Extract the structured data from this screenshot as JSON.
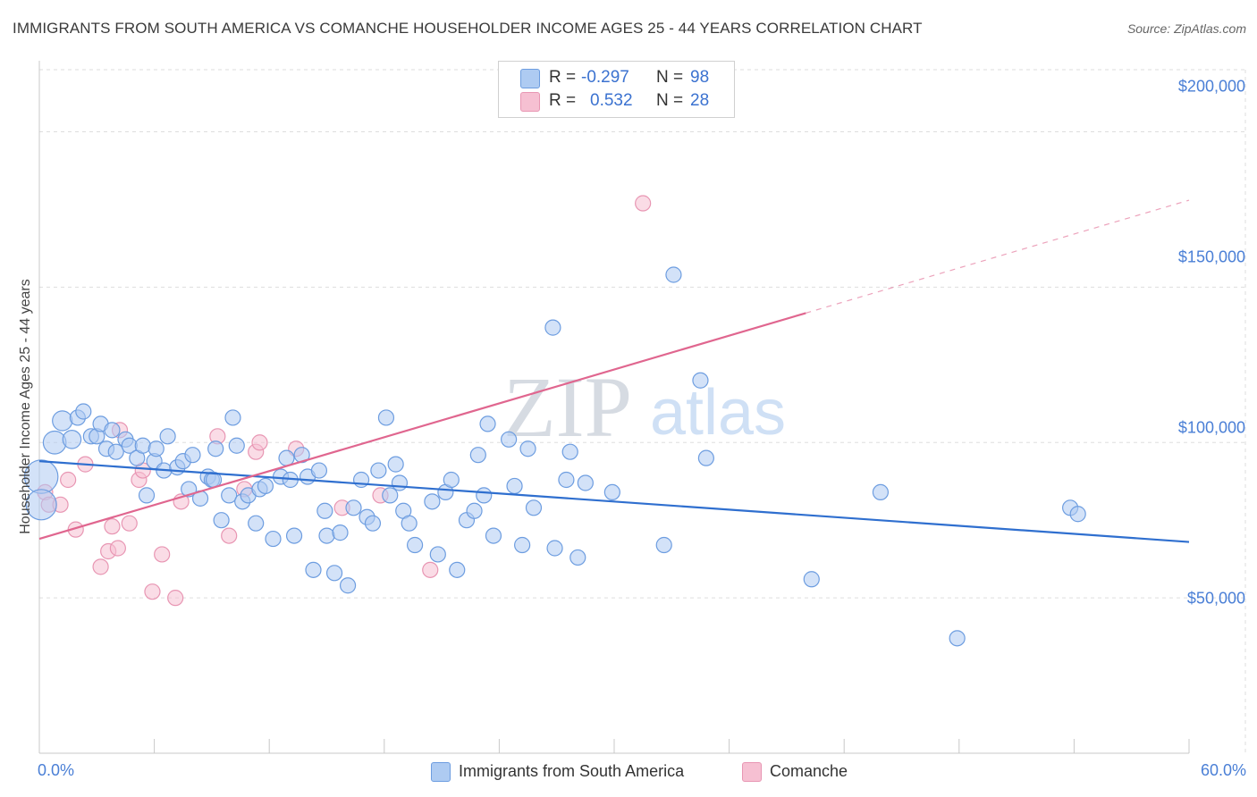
{
  "title": "IMMIGRANTS FROM SOUTH AMERICA VS COMANCHE HOUSEHOLDER INCOME AGES 25 - 44 YEARS CORRELATION CHART",
  "source": "Source: ZipAtlas.com",
  "watermark": {
    "zip": "ZIP",
    "atlas": "atlas"
  },
  "legend": {
    "r_label": "R =",
    "n_label": "N =",
    "blue": {
      "r": "-0.297",
      "n": "98"
    },
    "pink": {
      "r": "0.532",
      "n": "28"
    }
  },
  "colors": {
    "blue_fill": "#aecbf2",
    "blue_stroke": "#6d9de0",
    "blue_line": "#2f6fcf",
    "pink_fill": "#f6c0d2",
    "pink_stroke": "#e896b3",
    "pink_line": "#e0668f",
    "grid": "#dddddd",
    "tick_text": "#4a7fd6"
  },
  "chart_data": {
    "type": "scatter",
    "title": "IMMIGRANTS FROM SOUTH AMERICA VS COMANCHE HOUSEHOLDER INCOME AGES 25 - 44 YEARS CORRELATION CHART",
    "xlabel": "",
    "ylabel": "Householder Income Ages 25 - 44 years",
    "xlim": [
      0,
      60
    ],
    "ylim": [
      0,
      220000
    ],
    "x_tick_labels": [
      "0.0%",
      "60.0%"
    ],
    "y_ticks": [
      50000,
      100000,
      150000,
      200000
    ],
    "y_tick_labels": [
      "$50,000",
      "$100,000",
      "$150,000",
      "$200,000"
    ],
    "series": [
      {
        "name": "Immigrants from South America",
        "r": -0.297,
        "n": 98,
        "trend": {
          "x": [
            0,
            60
          ],
          "y": [
            94000,
            68000
          ],
          "solid_to": 60
        },
        "points": [
          {
            "x": 0.1,
            "y": 89000,
            "s": 2.2
          },
          {
            "x": 0.1,
            "y": 80000,
            "s": 2.0
          },
          {
            "x": 0.8,
            "y": 100000,
            "s": 1.5
          },
          {
            "x": 1.2,
            "y": 107000,
            "s": 1.3
          },
          {
            "x": 1.7,
            "y": 101000,
            "s": 1.2
          },
          {
            "x": 2.0,
            "y": 108000,
            "s": 1.0
          },
          {
            "x": 2.3,
            "y": 110000,
            "s": 1.0
          },
          {
            "x": 2.7,
            "y": 102000,
            "s": 1.0
          },
          {
            "x": 3.0,
            "y": 102000,
            "s": 1.0
          },
          {
            "x": 3.2,
            "y": 106000,
            "s": 1.0
          },
          {
            "x": 3.5,
            "y": 98000,
            "s": 1.0
          },
          {
            "x": 3.8,
            "y": 104000,
            "s": 1.0
          },
          {
            "x": 4.0,
            "y": 97000,
            "s": 1.0
          },
          {
            "x": 4.5,
            "y": 101000,
            "s": 1.0
          },
          {
            "x": 4.7,
            "y": 99000,
            "s": 1.0
          },
          {
            "x": 5.1,
            "y": 95000,
            "s": 1.0
          },
          {
            "x": 5.4,
            "y": 99000,
            "s": 1.0
          },
          {
            "x": 5.6,
            "y": 83000,
            "s": 1.0
          },
          {
            "x": 6.0,
            "y": 94000,
            "s": 1.0
          },
          {
            "x": 6.1,
            "y": 98000,
            "s": 1.0
          },
          {
            "x": 6.5,
            "y": 91000,
            "s": 1.0
          },
          {
            "x": 6.7,
            "y": 102000,
            "s": 1.0
          },
          {
            "x": 7.2,
            "y": 92000,
            "s": 1.0
          },
          {
            "x": 7.5,
            "y": 94000,
            "s": 1.0
          },
          {
            "x": 7.8,
            "y": 85000,
            "s": 1.0
          },
          {
            "x": 8.0,
            "y": 96000,
            "s": 1.0
          },
          {
            "x": 8.4,
            "y": 82000,
            "s": 1.0
          },
          {
            "x": 8.8,
            "y": 89000,
            "s": 1.0
          },
          {
            "x": 9.0,
            "y": 88000,
            "s": 1.0
          },
          {
            "x": 9.1,
            "y": 88000,
            "s": 1.0
          },
          {
            "x": 9.2,
            "y": 98000,
            "s": 1.0
          },
          {
            "x": 9.5,
            "y": 75000,
            "s": 1.0
          },
          {
            "x": 9.9,
            "y": 83000,
            "s": 1.0
          },
          {
            "x": 10.1,
            "y": 108000,
            "s": 1.0
          },
          {
            "x": 10.3,
            "y": 99000,
            "s": 1.0
          },
          {
            "x": 10.6,
            "y": 81000,
            "s": 1.0
          },
          {
            "x": 10.9,
            "y": 83000,
            "s": 1.0
          },
          {
            "x": 11.3,
            "y": 74000,
            "s": 1.0
          },
          {
            "x": 11.5,
            "y": 85000,
            "s": 1.0
          },
          {
            "x": 11.8,
            "y": 86000,
            "s": 1.0
          },
          {
            "x": 12.2,
            "y": 69000,
            "s": 1.0
          },
          {
            "x": 12.6,
            "y": 89000,
            "s": 1.0
          },
          {
            "x": 12.9,
            "y": 95000,
            "s": 1.0
          },
          {
            "x": 13.1,
            "y": 88000,
            "s": 1.0
          },
          {
            "x": 13.3,
            "y": 70000,
            "s": 1.0
          },
          {
            "x": 13.7,
            "y": 96000,
            "s": 1.0
          },
          {
            "x": 14.0,
            "y": 89000,
            "s": 1.0
          },
          {
            "x": 14.3,
            "y": 59000,
            "s": 1.0
          },
          {
            "x": 14.6,
            "y": 91000,
            "s": 1.0
          },
          {
            "x": 14.9,
            "y": 78000,
            "s": 1.0
          },
          {
            "x": 15.0,
            "y": 70000,
            "s": 1.0
          },
          {
            "x": 15.4,
            "y": 58000,
            "s": 1.0
          },
          {
            "x": 15.7,
            "y": 71000,
            "s": 1.0
          },
          {
            "x": 16.1,
            "y": 54000,
            "s": 1.0
          },
          {
            "x": 16.4,
            "y": 79000,
            "s": 1.0
          },
          {
            "x": 16.8,
            "y": 88000,
            "s": 1.0
          },
          {
            "x": 17.1,
            "y": 76000,
            "s": 1.0
          },
          {
            "x": 17.4,
            "y": 74000,
            "s": 1.0
          },
          {
            "x": 17.7,
            "y": 91000,
            "s": 1.0
          },
          {
            "x": 18.1,
            "y": 108000,
            "s": 1.0
          },
          {
            "x": 18.3,
            "y": 83000,
            "s": 1.0
          },
          {
            "x": 18.6,
            "y": 93000,
            "s": 1.0
          },
          {
            "x": 18.8,
            "y": 87000,
            "s": 1.0
          },
          {
            "x": 19.0,
            "y": 78000,
            "s": 1.0
          },
          {
            "x": 19.3,
            "y": 74000,
            "s": 1.0
          },
          {
            "x": 19.6,
            "y": 67000,
            "s": 1.0
          },
          {
            "x": 20.5,
            "y": 81000,
            "s": 1.0
          },
          {
            "x": 20.8,
            "y": 64000,
            "s": 1.0
          },
          {
            "x": 21.2,
            "y": 84000,
            "s": 1.0
          },
          {
            "x": 21.5,
            "y": 88000,
            "s": 1.0
          },
          {
            "x": 21.8,
            "y": 59000,
            "s": 1.0
          },
          {
            "x": 22.3,
            "y": 75000,
            "s": 1.0
          },
          {
            "x": 22.7,
            "y": 78000,
            "s": 1.0
          },
          {
            "x": 22.9,
            "y": 96000,
            "s": 1.0
          },
          {
            "x": 23.2,
            "y": 83000,
            "s": 1.0
          },
          {
            "x": 23.4,
            "y": 106000,
            "s": 1.0
          },
          {
            "x": 23.7,
            "y": 70000,
            "s": 1.0
          },
          {
            "x": 24.5,
            "y": 101000,
            "s": 1.0
          },
          {
            "x": 24.8,
            "y": 86000,
            "s": 1.0
          },
          {
            "x": 25.2,
            "y": 67000,
            "s": 1.0
          },
          {
            "x": 25.5,
            "y": 98000,
            "s": 1.0
          },
          {
            "x": 25.8,
            "y": 79000,
            "s": 1.0
          },
          {
            "x": 26.8,
            "y": 137000,
            "s": 1.0
          },
          {
            "x": 26.9,
            "y": 66000,
            "s": 1.0
          },
          {
            "x": 27.5,
            "y": 88000,
            "s": 1.0
          },
          {
            "x": 27.7,
            "y": 97000,
            "s": 1.0
          },
          {
            "x": 28.1,
            "y": 63000,
            "s": 1.0
          },
          {
            "x": 28.5,
            "y": 87000,
            "s": 1.0
          },
          {
            "x": 29.9,
            "y": 84000,
            "s": 1.0
          },
          {
            "x": 32.6,
            "y": 67000,
            "s": 1.0
          },
          {
            "x": 33.1,
            "y": 154000,
            "s": 1.0
          },
          {
            "x": 34.5,
            "y": 120000,
            "s": 1.0
          },
          {
            "x": 34.8,
            "y": 95000,
            "s": 1.0
          },
          {
            "x": 40.3,
            "y": 56000,
            "s": 1.0
          },
          {
            "x": 43.9,
            "y": 84000,
            "s": 1.0
          },
          {
            "x": 47.9,
            "y": 37000,
            "s": 1.0
          },
          {
            "x": 53.8,
            "y": 79000,
            "s": 1.0
          },
          {
            "x": 54.2,
            "y": 77000,
            "s": 1.0
          }
        ]
      },
      {
        "name": "Comanche",
        "r": 0.532,
        "n": 28,
        "trend": {
          "x": [
            0,
            60
          ],
          "y": [
            69000,
            178000
          ],
          "solid_to": 40
        },
        "points": [
          {
            "x": 0.3,
            "y": 84000,
            "s": 1.0
          },
          {
            "x": 0.5,
            "y": 80000,
            "s": 1.0
          },
          {
            "x": 1.1,
            "y": 80000,
            "s": 1.0
          },
          {
            "x": 1.5,
            "y": 88000,
            "s": 1.0
          },
          {
            "x": 1.9,
            "y": 72000,
            "s": 1.0
          },
          {
            "x": 2.4,
            "y": 93000,
            "s": 1.0
          },
          {
            "x": 3.2,
            "y": 60000,
            "s": 1.0
          },
          {
            "x": 3.6,
            "y": 65000,
            "s": 1.0
          },
          {
            "x": 3.8,
            "y": 73000,
            "s": 1.0
          },
          {
            "x": 4.1,
            "y": 66000,
            "s": 1.0
          },
          {
            "x": 4.2,
            "y": 104000,
            "s": 1.0
          },
          {
            "x": 4.7,
            "y": 74000,
            "s": 1.0
          },
          {
            "x": 5.2,
            "y": 88000,
            "s": 1.0
          },
          {
            "x": 5.4,
            "y": 91000,
            "s": 1.0
          },
          {
            "x": 5.9,
            "y": 52000,
            "s": 1.0
          },
          {
            "x": 6.4,
            "y": 64000,
            "s": 1.0
          },
          {
            "x": 7.1,
            "y": 50000,
            "s": 1.0
          },
          {
            "x": 7.4,
            "y": 81000,
            "s": 1.0
          },
          {
            "x": 9.3,
            "y": 102000,
            "s": 1.0
          },
          {
            "x": 9.9,
            "y": 70000,
            "s": 1.0
          },
          {
            "x": 10.7,
            "y": 85000,
            "s": 1.0
          },
          {
            "x": 11.3,
            "y": 97000,
            "s": 1.0
          },
          {
            "x": 11.5,
            "y": 100000,
            "s": 1.0
          },
          {
            "x": 13.4,
            "y": 98000,
            "s": 1.0
          },
          {
            "x": 15.8,
            "y": 79000,
            "s": 1.0
          },
          {
            "x": 17.8,
            "y": 83000,
            "s": 1.0
          },
          {
            "x": 20.4,
            "y": 59000,
            "s": 1.0
          },
          {
            "x": 31.5,
            "y": 177000,
            "s": 1.0
          }
        ]
      }
    ]
  },
  "bottom_legend": {
    "blue_label": "Immigrants from South America",
    "pink_label": "Comanche"
  }
}
